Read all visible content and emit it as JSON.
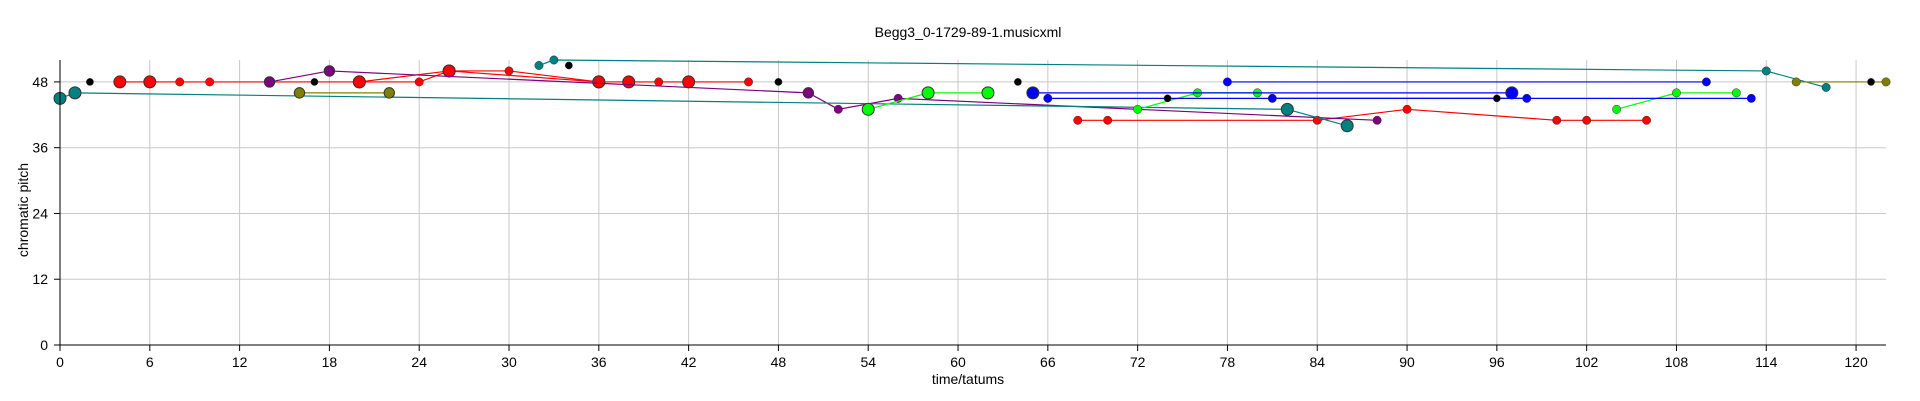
{
  "chart_data": {
    "type": "line",
    "title": "Begg3_0-1729-89-1.musicxml",
    "xlabel": "time/tatums",
    "ylabel": "chromatic pitch",
    "xlim": [
      0,
      122
    ],
    "ylim": [
      0,
      52
    ],
    "xticks": [
      0,
      6,
      12,
      18,
      24,
      30,
      36,
      42,
      48,
      54,
      60,
      66,
      72,
      78,
      84,
      90,
      96,
      102,
      108,
      114,
      120
    ],
    "yticks": [
      0,
      12,
      24,
      36,
      48
    ],
    "grid": true,
    "series": [
      {
        "color": "#ff0000",
        "points": [
          [
            4,
            48
          ],
          [
            6,
            48
          ],
          [
            8,
            48
          ],
          [
            10,
            48
          ],
          [
            14,
            48
          ],
          [
            20,
            48
          ],
          [
            26,
            50
          ],
          [
            30,
            50
          ],
          [
            36,
            48
          ],
          [
            38,
            48
          ],
          [
            40,
            48
          ],
          [
            42,
            48
          ],
          [
            46,
            48
          ]
        ],
        "sizes": [
          6,
          6,
          4,
          4,
          4,
          6,
          6,
          4,
          6,
          6,
          4,
          6,
          4
        ]
      },
      {
        "color": "#ff0000",
        "points": [
          [
            20,
            48
          ],
          [
            24,
            48
          ],
          [
            26,
            50
          ],
          [
            36,
            48
          ]
        ],
        "sizes": [
          6,
          4,
          6,
          6
        ]
      },
      {
        "color": "#ff0000",
        "points": [
          [
            68,
            41
          ],
          [
            70,
            41
          ],
          [
            84,
            41
          ],
          [
            90,
            43
          ],
          [
            100,
            41
          ],
          [
            102,
            41
          ],
          [
            106,
            41
          ]
        ],
        "sizes": [
          4,
          4,
          4,
          4,
          4,
          4,
          4
        ]
      },
      {
        "color": "#800080",
        "points": [
          [
            14,
            48
          ],
          [
            18,
            50
          ],
          [
            50,
            46
          ],
          [
            52,
            43
          ],
          [
            56,
            45
          ],
          [
            88,
            41
          ]
        ],
        "sizes": [
          5,
          5,
          5,
          4,
          4,
          4
        ]
      },
      {
        "color": "#008080",
        "points": [
          [
            0,
            45
          ],
          [
            1,
            46
          ],
          [
            82,
            43
          ],
          [
            86,
            40
          ]
        ],
        "sizes": [
          6,
          6,
          6,
          6
        ]
      },
      {
        "color": "#008080",
        "points": [
          [
            32,
            51
          ],
          [
            33,
            52
          ],
          [
            114,
            50
          ],
          [
            118,
            47
          ]
        ],
        "sizes": [
          4,
          4,
          4,
          4
        ]
      },
      {
        "color": "#808000",
        "points": [
          [
            16,
            46
          ],
          [
            22,
            46
          ]
        ],
        "sizes": [
          5,
          5
        ]
      },
      {
        "color": "#808000",
        "points": [
          [
            116,
            48
          ],
          [
            122,
            48
          ]
        ],
        "sizes": [
          4,
          4
        ]
      },
      {
        "color": "#00ff00",
        "points": [
          [
            54,
            43
          ],
          [
            58,
            46
          ],
          [
            62,
            46
          ]
        ],
        "sizes": [
          6,
          6,
          6
        ]
      },
      {
        "color": "#00ff00",
        "points": [
          [
            72,
            43
          ],
          [
            76,
            46
          ],
          [
            80,
            46
          ]
        ],
        "sizes": [
          4,
          4,
          4
        ]
      },
      {
        "color": "#00ff00",
        "points": [
          [
            104,
            43
          ],
          [
            108,
            46
          ],
          [
            112,
            46
          ]
        ],
        "sizes": [
          4,
          4,
          4
        ]
      },
      {
        "color": "#0000ff",
        "points": [
          [
            65,
            46
          ],
          [
            97,
            46
          ]
        ],
        "sizes": [
          6,
          6
        ]
      },
      {
        "color": "#0000ff",
        "points": [
          [
            66,
            45
          ],
          [
            98,
            45
          ]
        ],
        "sizes": [
          4,
          4
        ]
      },
      {
        "color": "#0000ff",
        "points": [
          [
            78,
            48
          ],
          [
            110,
            48
          ]
        ],
        "sizes": [
          4,
          4
        ]
      },
      {
        "color": "#0000ff",
        "points": [
          [
            81,
            45
          ],
          [
            113,
            45
          ]
        ],
        "sizes": [
          4,
          4
        ]
      },
      {
        "color": "#000000",
        "points": [
          [
            2,
            48
          ],
          [
            17,
            48
          ],
          [
            34,
            51
          ],
          [
            48,
            48
          ],
          [
            64,
            48
          ],
          [
            74,
            45
          ],
          [
            96,
            45
          ],
          [
            121,
            48
          ]
        ],
        "sizes": [
          3,
          3,
          3,
          3,
          3,
          3,
          3,
          3
        ],
        "no_line": true
      }
    ]
  }
}
